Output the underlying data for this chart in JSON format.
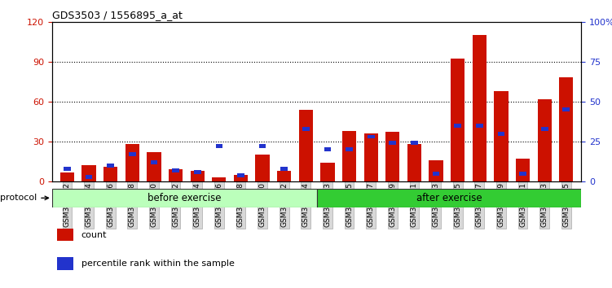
{
  "title": "GDS3503 / 1556895_a_at",
  "samples": [
    "GSM306062",
    "GSM306064",
    "GSM306066",
    "GSM306068",
    "GSM306070",
    "GSM306072",
    "GSM306074",
    "GSM306076",
    "GSM306078",
    "GSM306080",
    "GSM306082",
    "GSM306084",
    "GSM306063",
    "GSM306065",
    "GSM306067",
    "GSM306069",
    "GSM306071",
    "GSM306073",
    "GSM306075",
    "GSM306077",
    "GSM306079",
    "GSM306081",
    "GSM306083",
    "GSM306085"
  ],
  "count": [
    7,
    12,
    11,
    28,
    22,
    9,
    8,
    3,
    5,
    20,
    8,
    54,
    14,
    38,
    36,
    37,
    28,
    16,
    92,
    110,
    68,
    17,
    62,
    78
  ],
  "percentile": [
    8,
    3,
    10,
    17,
    12,
    7,
    6,
    22,
    4,
    22,
    8,
    33,
    20,
    20,
    28,
    24,
    24,
    5,
    35,
    35,
    30,
    5,
    33,
    45
  ],
  "before_n": 12,
  "after_n": 12,
  "ylim_left": [
    0,
    120
  ],
  "ylim_right": [
    0,
    100
  ],
  "yticks_left": [
    0,
    30,
    60,
    90,
    120
  ],
  "yticks_right": [
    0,
    25,
    50,
    75,
    100
  ],
  "yticklabels_right": [
    "0",
    "25",
    "50",
    "75",
    "100%"
  ],
  "bar_color": "#cc1100",
  "blue_color": "#2233cc",
  "before_color": "#bbffbb",
  "after_color": "#33cc33",
  "protocol_label": "protocol",
  "before_label": "before exercise",
  "after_label": "after exercise",
  "legend_count": "count",
  "legend_percentile": "percentile rank within the sample"
}
